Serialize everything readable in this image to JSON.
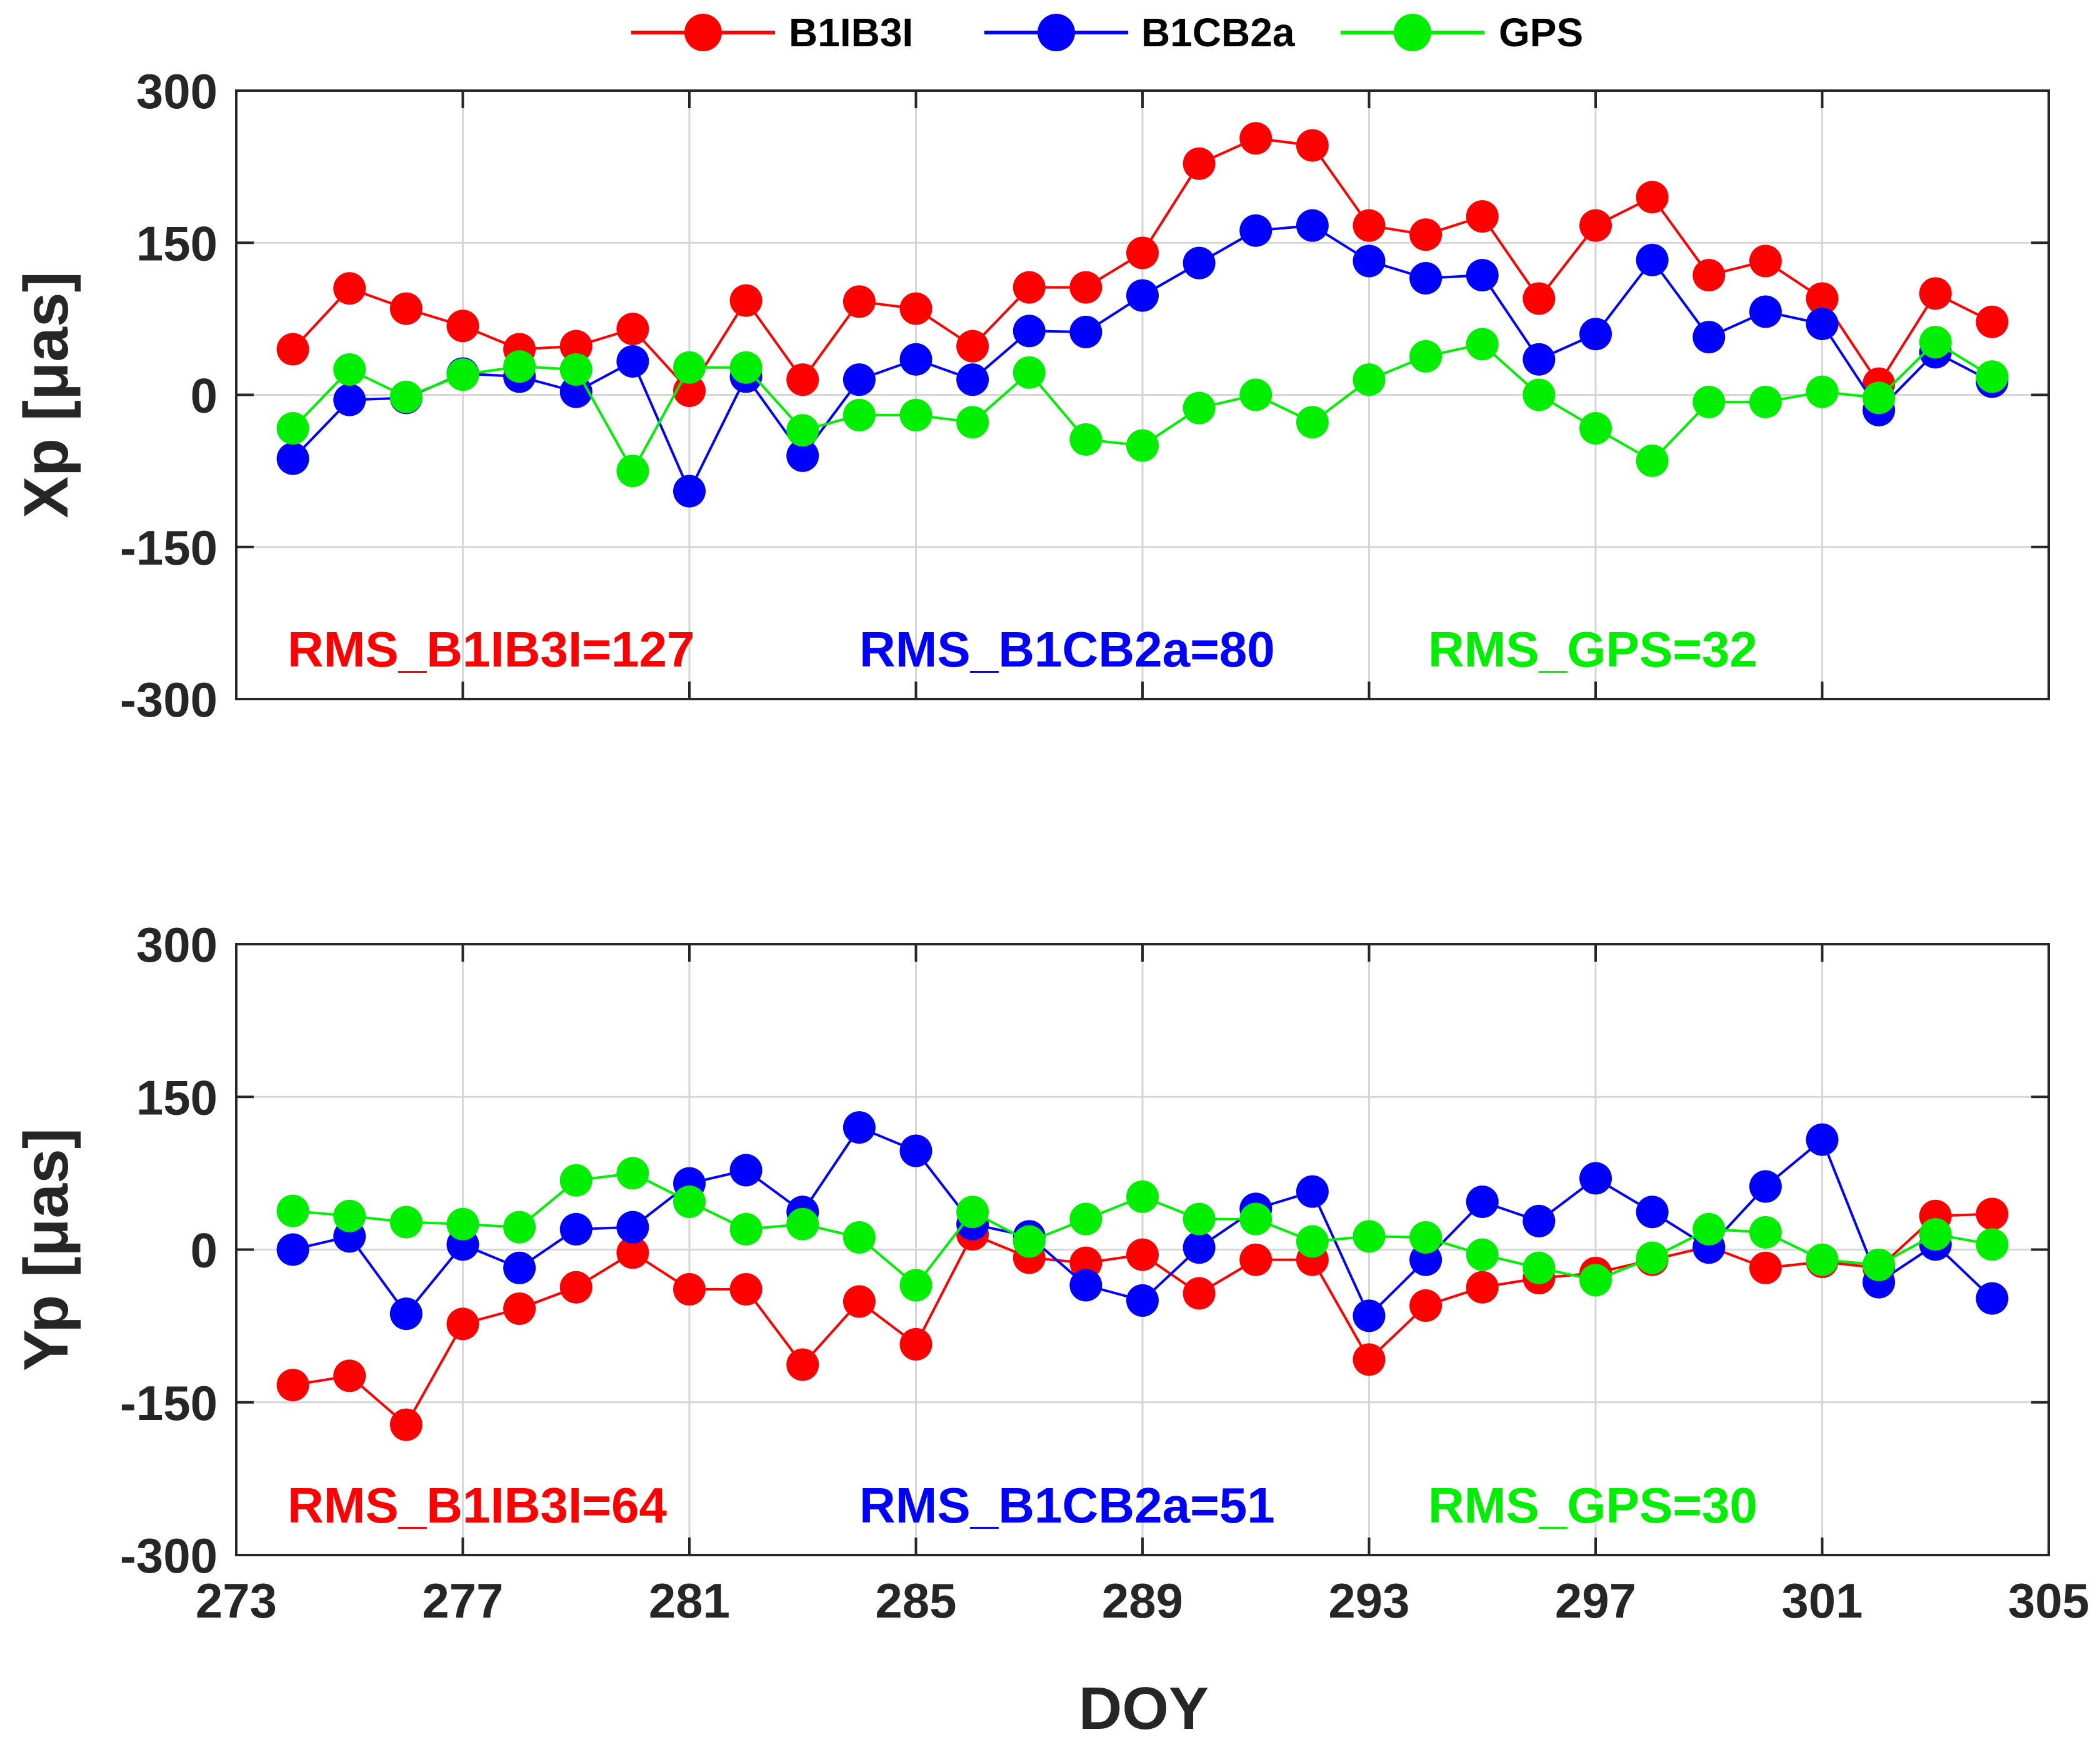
{
  "colors": {
    "B1IB3I": "#ff0000",
    "B1CB2a": "#0000ff",
    "GPS": "#00ee00",
    "axis": "#262626",
    "grid": "#d6d6d6"
  },
  "chart_data": {
    "type": "line",
    "legend": {
      "placement": "top-center",
      "entries": [
        "B1IB3I",
        "B1CB2a",
        "GPS"
      ]
    },
    "xlabel": "DOY",
    "xlim": [
      273,
      305
    ],
    "xticks": [
      273,
      277,
      281,
      285,
      289,
      293,
      297,
      301,
      305
    ],
    "x": [
      274,
      275,
      276,
      277,
      278,
      279,
      280,
      281,
      282,
      283,
      284,
      285,
      286,
      287,
      288,
      289,
      290,
      291,
      292,
      293,
      294,
      295,
      296,
      297,
      298,
      299,
      300,
      301,
      302,
      303,
      304
    ],
    "panels": [
      {
        "ylabel": "Xp [μas]",
        "ylim": [
          -300,
          300
        ],
        "yticks": [
          -300,
          -150,
          0,
          150,
          300
        ],
        "grid": true,
        "series": [
          {
            "name": "B1IB3I",
            "color": "#ff0000",
            "values": [
              45,
              105,
              85,
              68,
              45,
              48,
              65,
              4,
              93,
              15,
              92,
              85,
              48,
              106,
              106,
              140,
              228,
              253,
              246,
              167,
              158,
              176,
              95,
              167,
              195,
              118,
              132,
              95,
              11,
              100,
              72
            ]
          },
          {
            "name": "B1CB2a",
            "color": "#0000ff",
            "values": [
              -63,
              -5,
              -3,
              21,
              18,
              3,
              33,
              -95,
              18,
              -60,
              15,
              35,
              15,
              63,
              62,
              98,
              130,
              162,
              167,
              132,
              115,
              118,
              35,
              60,
              133,
              57,
              82,
              70,
              -15,
              42,
              13
            ]
          },
          {
            "name": "GPS",
            "color": "#00ee00",
            "values": [
              -33,
              25,
              -2,
              20,
              28,
              25,
              -75,
              27,
              27,
              -35,
              -20,
              -20,
              -27,
              22,
              -44,
              -50,
              -13,
              0,
              -27,
              15,
              38,
              50,
              0,
              -33,
              -65,
              -7,
              -7,
              3,
              -3,
              52,
              18
            ]
          }
        ],
        "annotations": [
          {
            "text": "RMS_B1IB3I=127",
            "series": "B1IB3I"
          },
          {
            "text": "RMS_B1CB2a=80",
            "series": "B1CB2a"
          },
          {
            "text": "RMS_GPS=32",
            "series": "GPS"
          }
        ]
      },
      {
        "ylabel": "Yp [μas]",
        "ylim": [
          -300,
          300
        ],
        "yticks": [
          -300,
          -150,
          0,
          150,
          300
        ],
        "grid": true,
        "series": [
          {
            "name": "B1IB3I",
            "color": "#ff0000",
            "values": [
              -133,
              -124,
              -172,
              -73,
              -58,
              -37,
              -3,
              -39,
              -39,
              -113,
              -51,
              -93,
              15,
              -8,
              -13,
              -5,
              -43,
              -10,
              -10,
              -108,
              -55,
              -37,
              -28,
              -23,
              -10,
              3,
              -18,
              -12,
              -18,
              33,
              35
            ]
          },
          {
            "name": "B1CB2a",
            "color": "#0000ff",
            "values": [
              0,
              13,
              -63,
              5,
              -18,
              20,
              22,
              65,
              78,
              37,
              120,
              97,
              25,
              13,
              -35,
              -50,
              2,
              40,
              57,
              -65,
              -10,
              47,
              28,
              70,
              37,
              2,
              62,
              108,
              -32,
              5,
              -48
            ]
          },
          {
            "name": "GPS",
            "color": "#00ee00",
            "values": [
              38,
              33,
              27,
              25,
              22,
              68,
              75,
              47,
              20,
              25,
              12,
              -35,
              37,
              8,
              30,
              52,
              30,
              30,
              8,
              13,
              12,
              -5,
              -18,
              -30,
              -8,
              20,
              17,
              -10,
              -15,
              15,
              5
            ]
          }
        ],
        "annotations": [
          {
            "text": "RMS_B1IB3I=64",
            "series": "B1IB3I"
          },
          {
            "text": "RMS_B1CB2a=51",
            "series": "B1CB2a"
          },
          {
            "text": "RMS_GPS=30",
            "series": "GPS"
          }
        ]
      }
    ]
  }
}
